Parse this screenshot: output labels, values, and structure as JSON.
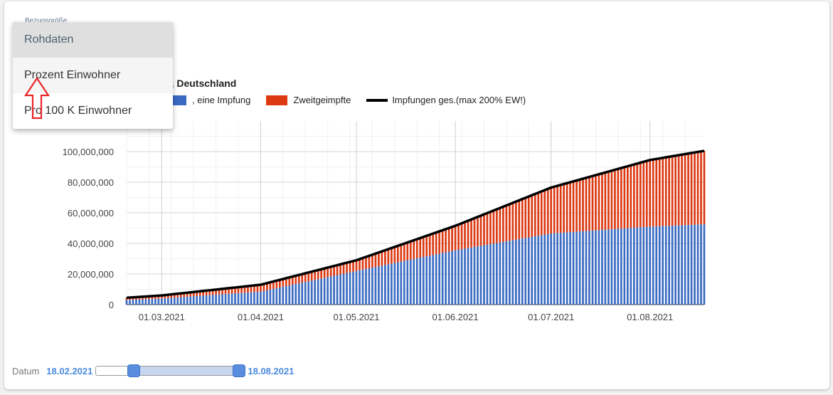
{
  "bezug_label": "Bezugsgröße",
  "dropdown": {
    "items": [
      "Rohdaten",
      "Prozent Einwohner",
      "Pro 100 K Einwohner"
    ],
    "selected": "Rohdaten",
    "hovered": "Prozent Einwohner"
  },
  "chart_title": "n, Deutschland",
  "legend": [
    {
      "label": ", eine Impfung",
      "color": "#3a6bc2",
      "kind": "bar"
    },
    {
      "label": "Zweitgeimpfte",
      "color": "#dc3912",
      "kind": "bar"
    },
    {
      "label": "Impfungen ges.(max 200% EW!)",
      "color": "#000000",
      "kind": "line"
    }
  ],
  "chart_data": {
    "type": "bar",
    "stacked": true,
    "x_start": "2021-02-18",
    "x_end": "2021-08-18",
    "x_ticks": [
      "01.03.2021",
      "01.04.2021",
      "01.05.2021",
      "01.06.2021",
      "01.07.2021",
      "01.08.2021"
    ],
    "y_ticks": [
      "0",
      "20,000,000",
      "40,000,000",
      "60,000,000",
      "80,000,000",
      "100,000,000"
    ],
    "ylim": [
      0,
      120000000
    ],
    "grid": true,
    "series": [
      {
        "name": ", eine Impfung",
        "color": "#3a6bc2",
        "points": [
          [
            "2021-02-18",
            3000000
          ],
          [
            "2021-03-01",
            4000000
          ],
          [
            "2021-04-01",
            8500000
          ],
          [
            "2021-05-01",
            22000000
          ],
          [
            "2021-06-01",
            35500000
          ],
          [
            "2021-07-01",
            46500000
          ],
          [
            "2021-08-01",
            51000000
          ],
          [
            "2021-08-18",
            52500000
          ]
        ]
      },
      {
        "name": "Zweitgeimpfte",
        "color": "#dc3912",
        "points": [
          [
            "2021-02-18",
            1500000
          ],
          [
            "2021-03-01",
            2000000
          ],
          [
            "2021-04-01",
            4500000
          ],
          [
            "2021-05-01",
            7000000
          ],
          [
            "2021-06-01",
            16000000
          ],
          [
            "2021-07-01",
            30000000
          ],
          [
            "2021-08-01",
            43500000
          ],
          [
            "2021-08-18",
            48000000
          ]
        ]
      },
      {
        "name": "Impfungen ges.(max 200% EW!)",
        "color": "#000000",
        "points": [
          [
            "2021-02-18",
            4500000
          ],
          [
            "2021-03-01",
            6000000
          ],
          [
            "2021-04-01",
            13000000
          ],
          [
            "2021-05-01",
            29000000
          ],
          [
            "2021-06-01",
            51500000
          ],
          [
            "2021-07-01",
            76500000
          ],
          [
            "2021-08-01",
            94500000
          ],
          [
            "2021-08-18",
            100500000
          ]
        ]
      }
    ]
  },
  "range_slider": {
    "label": "Datum",
    "from": "18.02.2021",
    "to": "18.08.2021",
    "from_fraction": 0.25,
    "to_fraction": 0.96
  }
}
